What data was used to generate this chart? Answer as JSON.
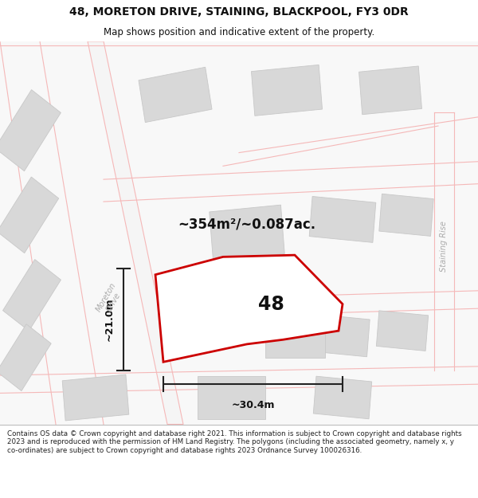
{
  "title": "48, MORETON DRIVE, STAINING, BLACKPOOL, FY3 0DR",
  "subtitle": "Map shows position and indicative extent of the property.",
  "area_label": "~354m²/~0.087ac.",
  "plot_number": "48",
  "dim_width_label": "~30.4m",
  "dim_height_label": "~21.0m",
  "footer": "Contains OS data © Crown copyright and database right 2021. This information is subject to Crown copyright and database rights 2023 and is reproduced with the permission of HM Land Registry. The polygons (including the associated geometry, namely x, y co-ordinates) are subject to Crown copyright and database rights 2023 Ordnance Survey 100026316.",
  "map_bg": "#f0f0f0",
  "building_color": "#d8d8d8",
  "building_edge": "#c8c8c8",
  "road_color": "#f5b8b8",
  "plot_fill": "#ffffff",
  "plot_edge": "#cc0000",
  "dim_color": "#222222",
  "text_color": "#111111",
  "road_label_color": "#aaaaaa",
  "white": "#ffffff"
}
